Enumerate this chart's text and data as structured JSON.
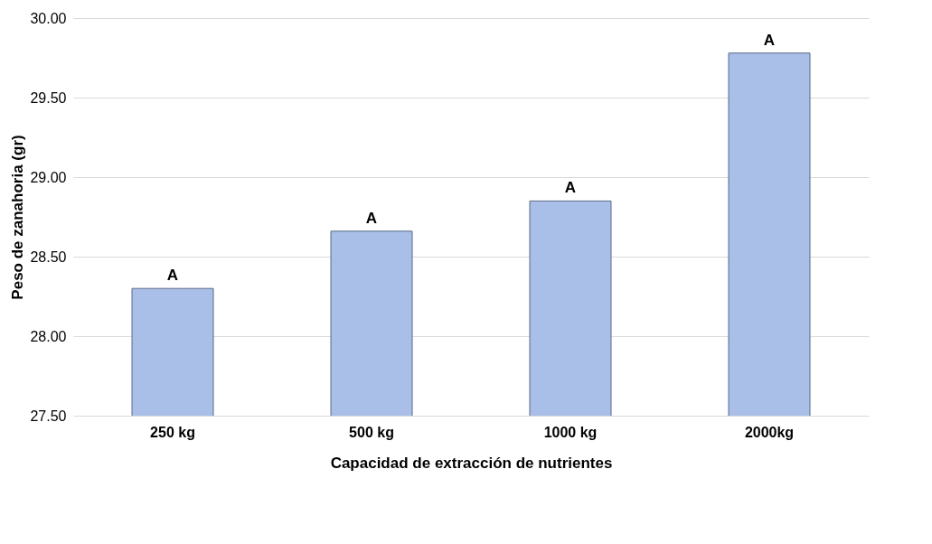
{
  "chart_data": {
    "type": "bar",
    "xlabel": "Capacidad de extracción de nutrientes",
    "ylabel": "Peso de zanahoria (gr)",
    "categories": [
      "250 kg",
      "500 kg",
      "1000 kg",
      "2000kg"
    ],
    "values": [
      28.3,
      28.66,
      28.85,
      29.78
    ],
    "color": "#a9bfe8",
    "ylim": [
      27.5,
      30
    ],
    "yticks": [
      {
        "value": 27.5,
        "label": "27.50"
      },
      {
        "value": 28,
        "label": "28.00"
      },
      {
        "value": 28.5,
        "label": "28.50"
      },
      {
        "value": 29,
        "label": "29.00"
      },
      {
        "value": 29.5,
        "label": "29.50"
      },
      {
        "value": 30,
        "label": "30.00"
      }
    ],
    "grid": "y",
    "annotations": [
      {
        "text": "A",
        "x": "250 kg",
        "y": 28.3
      },
      {
        "text": "A",
        "x": "500 kg",
        "y": 28.66
      },
      {
        "text": "A",
        "x": "1000 kg",
        "y": 28.85
      },
      {
        "text": "A",
        "x": "2000kg",
        "y": 29.78
      }
    ]
  }
}
